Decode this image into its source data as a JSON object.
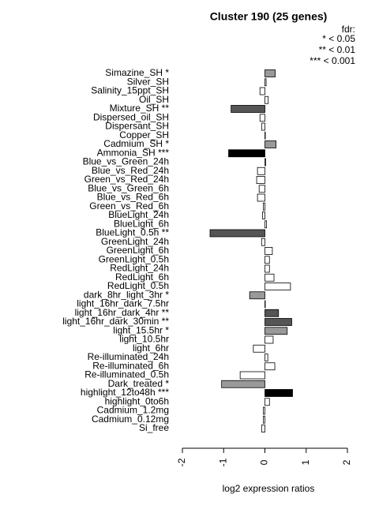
{
  "chart_data": {
    "type": "barh",
    "title": "Cluster 190 (25 genes)",
    "legend_title": "fdr:",
    "legend_entries": [
      "* < 0.05",
      "** < 0.01",
      "*** < 0.001"
    ],
    "x_label": "log2 expression ratios",
    "categories": [
      "Simazine_SH *",
      "Silver_SH",
      "Salinity_15ppt_SH",
      "Oil_SH",
      "Mixture_SH **",
      "Dispersed_oil_SH",
      "Dispersant_SH",
      "Copper_SH",
      "Cadmium_SH *",
      "Ammonia_SH ***",
      "Blue_vs_Green_24h",
      "Blue_vs_Red_24h",
      "Green_vs_Red_24h",
      "Blue_vs_Green_6h",
      "Blue_vs_Red_6h",
      "Green_vs_Red_6h",
      "BlueLight_24h",
      "BlueLight_6h",
      "BlueLight_0.5h **",
      "GreenLight_24h",
      "GreenLight_6h",
      "GreenLight_0.5h",
      "RedLight_24h",
      "RedLight_6h",
      "RedLight_0.5h",
      "dark_8hr_light_3hr *",
      "light_16hr_dark_7.5hr",
      "light_16hr_dark_4hr **",
      "light_16hr_dark_30min **",
      "light_15.5hr *",
      "light_10.5hr",
      "light_6hr",
      "Re-illuminated_24h",
      "Re-illuminated_6h",
      "Re-illuminated_0.5h",
      "Dark_treated *",
      "highlight_12to48h ***",
      "highlight_0to6h",
      "Cadmium_1.2mg",
      "Cadmium_0.12mg",
      "Si_free"
    ],
    "values": [
      0.25,
      0.03,
      -0.12,
      0.08,
      -0.82,
      -0.12,
      -0.08,
      0.01,
      0.27,
      -0.88,
      0.02,
      -0.18,
      -0.2,
      -0.14,
      -0.18,
      -0.04,
      -0.06,
      0.04,
      -1.33,
      -0.08,
      0.18,
      0.11,
      0.11,
      0.22,
      0.62,
      -0.37,
      0.0,
      0.33,
      0.65,
      0.54,
      0.2,
      -0.28,
      0.07,
      0.24,
      -0.6,
      -1.05,
      0.67,
      0.11,
      -0.04,
      -0.04,
      -0.08
    ],
    "colors": [
      "#999999",
      "#ffffff",
      "#ffffff",
      "#ffffff",
      "#555555",
      "#ffffff",
      "#ffffff",
      "#ffffff",
      "#999999",
      "#000000",
      "#ffffff",
      "#ffffff",
      "#ffffff",
      "#ffffff",
      "#ffffff",
      "#ffffff",
      "#ffffff",
      "#ffffff",
      "#555555",
      "#ffffff",
      "#ffffff",
      "#ffffff",
      "#ffffff",
      "#ffffff",
      "#ffffff",
      "#999999",
      "#ffffff",
      "#555555",
      "#555555",
      "#999999",
      "#ffffff",
      "#ffffff",
      "#ffffff",
      "#ffffff",
      "#ffffff",
      "#999999",
      "#000000",
      "#ffffff",
      "#ffffff",
      "#ffffff",
      "#ffffff"
    ],
    "xlim": [
      -2,
      2
    ],
    "xticks": [
      -2,
      -1,
      0,
      1,
      2
    ]
  }
}
